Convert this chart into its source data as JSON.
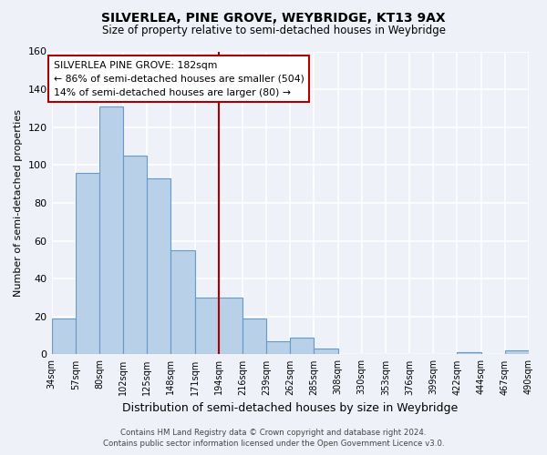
{
  "title": "SILVERLEA, PINE GROVE, WEYBRIDGE, KT13 9AX",
  "subtitle": "Size of property relative to semi-detached houses in Weybridge",
  "xlabel": "Distribution of semi-detached houses by size in Weybridge",
  "ylabel": "Number of semi-detached properties",
  "bin_labels": [
    "34sqm",
    "57sqm",
    "80sqm",
    "102sqm",
    "125sqm",
    "148sqm",
    "171sqm",
    "194sqm",
    "216sqm",
    "239sqm",
    "262sqm",
    "285sqm",
    "308sqm",
    "330sqm",
    "353sqm",
    "376sqm",
    "399sqm",
    "422sqm",
    "444sqm",
    "467sqm",
    "490sqm"
  ],
  "bar_values": [
    19,
    96,
    131,
    105,
    93,
    55,
    30,
    30,
    19,
    7,
    9,
    3,
    0,
    0,
    0,
    0,
    0,
    1,
    0,
    2
  ],
  "bar_color": "#b8d0e8",
  "bar_edge_color": "#6699cc",
  "property_line_index": 7,
  "property_line_color": "#aa0000",
  "annotation_title": "SILVERLEA PINE GROVE: 182sqm",
  "annotation_line1": "← 86% of semi-detached houses are smaller (504)",
  "annotation_line2": "14% of semi-detached houses are larger (80) →",
  "annotation_box_color": "#ffffff",
  "annotation_box_edge_color": "#aa0000",
  "ylim": [
    0,
    160
  ],
  "yticks": [
    0,
    20,
    40,
    60,
    80,
    100,
    120,
    140,
    160
  ],
  "footer_line1": "Contains HM Land Registry data © Crown copyright and database right 2024.",
  "footer_line2": "Contains public sector information licensed under the Open Government Licence v3.0.",
  "background_color": "#eef2f8",
  "plot_background_color": "#eef2f8",
  "grid_color": "#ffffff"
}
